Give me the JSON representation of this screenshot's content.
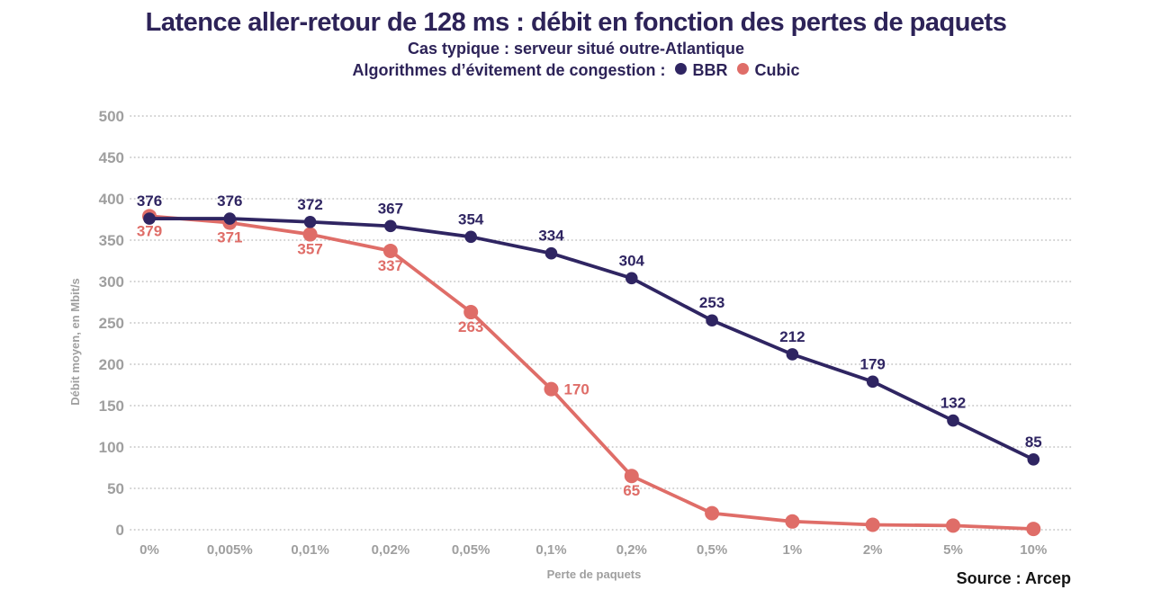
{
  "page": {
    "title": "Latence aller-retour de 128 ms : débit en fonction des pertes de paquets",
    "subtitle": "Cas typique : serveur situé outre-Atlantique",
    "legend_prefix": "Algorithmes d’évitement de congestion :",
    "source": "Source : Arcep"
  },
  "colors": {
    "bbr": "#2f2562",
    "cubic": "#df6d68",
    "title_text": "#2d2358",
    "axis_text": "#9f9f9f",
    "grid": "#c9c9c9",
    "source_text": "#141414",
    "background": "#ffffff"
  },
  "chart_data": {
    "type": "line",
    "title": "Latence aller-retour de 128 ms : débit en fonction des pertes de paquets",
    "subtitle": "Cas typique : serveur situé outre-Atlantique",
    "legend_title": "Algorithmes d’évitement de congestion :",
    "legend_position": "top",
    "xlabel": "Perte de paquets",
    "ylabel": "Débit moyen, en Mbit/s",
    "categories": [
      "0%",
      "0,005%",
      "0,01%",
      "0,02%",
      "0,05%",
      "0,1%",
      "0,2%",
      "0,5%",
      "1%",
      "2%",
      "5%",
      "10%"
    ],
    "ylim": [
      0,
      500
    ],
    "ytick_step": 50,
    "grid": "horizontal-dotted",
    "series": [
      {
        "name": "BBR",
        "color": "#2f2562",
        "values": [
          376,
          376,
          372,
          367,
          354,
          334,
          304,
          253,
          212,
          179,
          132,
          85
        ],
        "point_labels": [
          "376",
          "376",
          "372",
          "367",
          "354",
          "334",
          "304",
          "253",
          "212",
          "179",
          "132",
          "85"
        ],
        "label_position": "above"
      },
      {
        "name": "Cubic",
        "color": "#df6d68",
        "values": [
          379,
          371,
          357,
          337,
          263,
          170,
          65,
          20,
          10,
          6,
          5,
          1
        ],
        "point_labels": [
          "379",
          "371",
          "357",
          "337",
          "263",
          "170",
          "65",
          null,
          null,
          null,
          null,
          null
        ],
        "label_position": "below",
        "label_position_overrides": {
          "5": "right"
        }
      }
    ]
  }
}
